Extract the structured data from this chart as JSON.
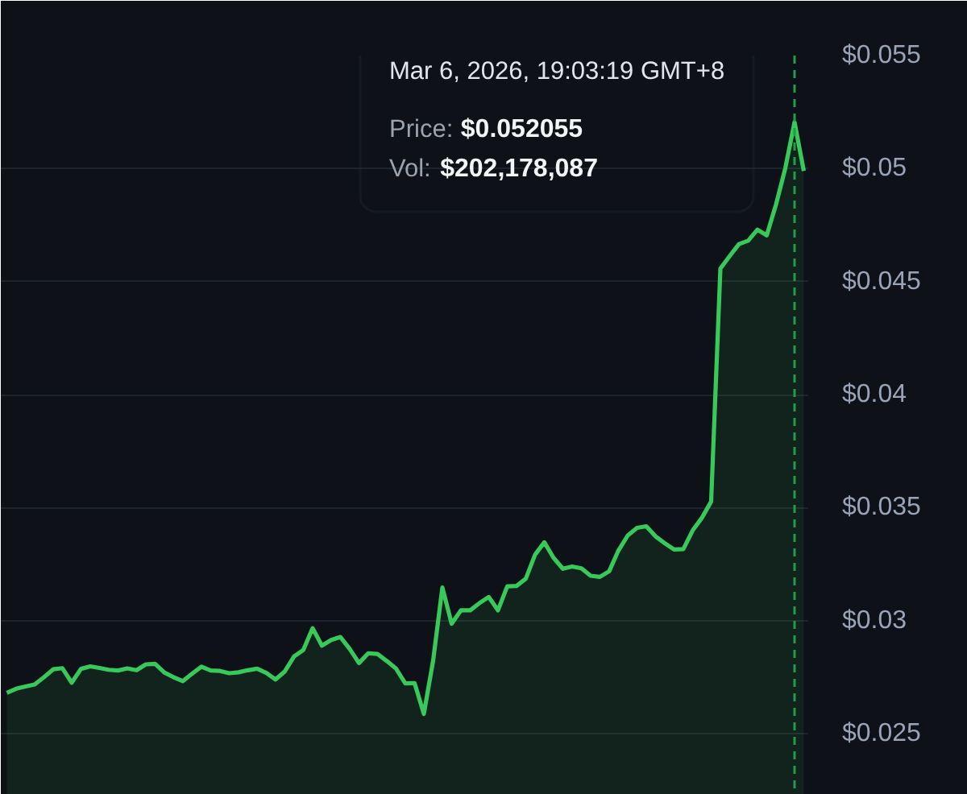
{
  "chart_data": {
    "type": "area",
    "categories": [
      null,
      null,
      null,
      null,
      null,
      null,
      null,
      null,
      null,
      null,
      null,
      null,
      null,
      null,
      null,
      null,
      null,
      null,
      null,
      null,
      null,
      null,
      null,
      null,
      null,
      null,
      null,
      null,
      null,
      null,
      null,
      null,
      null,
      null,
      null,
      null,
      null,
      null,
      null,
      null,
      null,
      null,
      null,
      null,
      null,
      null,
      null,
      null,
      null,
      null,
      null,
      null,
      null,
      null,
      null,
      null,
      null,
      null,
      null,
      null,
      null,
      null,
      null,
      null,
      null,
      null,
      null,
      null,
      null,
      null,
      null,
      null,
      null,
      null,
      null,
      null,
      null,
      null,
      null,
      null,
      null,
      null,
      null,
      null,
      null,
      null,
      null
    ],
    "series": [
      {
        "color": "#38c95b",
        "values": [
          0.02681,
          0.02699,
          0.02709,
          0.02718,
          0.0275,
          0.02785,
          0.0279,
          0.02726,
          0.02787,
          0.02798,
          0.02791,
          0.02783,
          0.0278,
          0.02789,
          0.02781,
          0.02807,
          0.02809,
          0.02771,
          0.0275,
          0.02733,
          0.02766,
          0.02797,
          0.0278,
          0.02778,
          0.02768,
          0.02772,
          0.02781,
          0.02788,
          0.02769,
          0.0274,
          0.02776,
          0.02842,
          0.02871,
          0.02967,
          0.0289,
          0.02915,
          0.02928,
          0.02875,
          0.02813,
          0.02856,
          0.02853,
          0.02822,
          0.02788,
          0.02723,
          0.02724,
          0.02588,
          0.02823,
          0.03147,
          0.02987,
          0.03046,
          0.03046,
          0.03078,
          0.03105,
          0.03046,
          0.03152,
          0.03154,
          0.03186,
          0.03292,
          0.03347,
          0.03278,
          0.0323,
          0.0324,
          0.03232,
          0.03199,
          0.03194,
          0.03219,
          0.03311,
          0.03377,
          0.03411,
          0.03418,
          0.03373,
          0.03343,
          0.03315,
          0.03317,
          0.03399,
          0.03455,
          0.03527,
          0.04558,
          0.04613,
          0.04666,
          0.04681,
          0.0473,
          0.04705,
          0.04841,
          0.05001,
          0.052055,
          0.0499
        ]
      }
    ],
    "ylim": [
      0.0223,
      0.055
    ],
    "yticks": [
      {
        "value": 0.025,
        "label": "$0.025"
      },
      {
        "value": 0.03,
        "label": "$0.03"
      },
      {
        "value": 0.035,
        "label": "$0.035"
      },
      {
        "value": 0.04,
        "label": "$0.04"
      },
      {
        "value": 0.045,
        "label": "$0.045"
      },
      {
        "value": 0.05,
        "label": "$0.05"
      },
      {
        "value": 0.055,
        "label": "$0.055"
      }
    ],
    "grid": "y",
    "tick_labels": "y",
    "annotations": [
      "Mar 6, 2026, 19:03:19 GMT+8",
      "Price:",
      "$0.052055",
      "Vol:",
      "$202,178,087"
    ]
  }
}
